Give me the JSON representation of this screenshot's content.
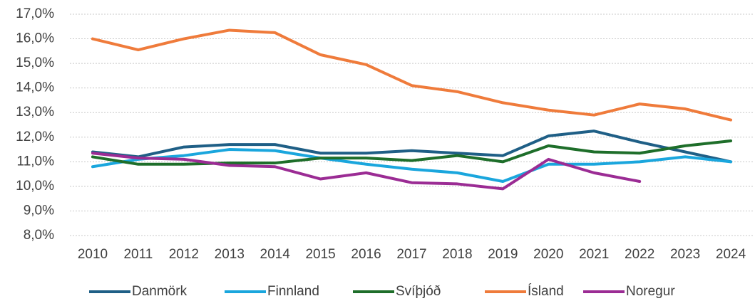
{
  "chart_data": {
    "type": "line",
    "categories": [
      "2010",
      "2011",
      "2012",
      "2013",
      "2014",
      "2015",
      "2016",
      "2017",
      "2018",
      "2019",
      "2020",
      "2021",
      "2022",
      "2023",
      "2024"
    ],
    "ylim": [
      8,
      17
    ],
    "yticks": [
      {
        "value": 8,
        "label": "8,0%"
      },
      {
        "value": 9,
        "label": "9,0%"
      },
      {
        "value": 10,
        "label": "10,0%"
      },
      {
        "value": 11,
        "label": "11,0%"
      },
      {
        "value": 12,
        "label": "12,0%"
      },
      {
        "value": 13,
        "label": "13,0%"
      },
      {
        "value": 14,
        "label": "14,0%"
      },
      {
        "value": 15,
        "label": "15,0%"
      },
      {
        "value": 16,
        "label": "16,0%"
      },
      {
        "value": 17,
        "label": "17,0%"
      }
    ],
    "grid": true,
    "legend": "bottom",
    "series": [
      {
        "name": "Danmörk",
        "color": "#1f5f86",
        "values": [
          11.4,
          11.2,
          11.6,
          11.7,
          11.7,
          11.35,
          11.35,
          11.45,
          11.35,
          11.25,
          12.05,
          12.25,
          11.8,
          11.4,
          11.0
        ]
      },
      {
        "name": "Finnland",
        "color": "#1aa6dd",
        "values": [
          10.8,
          11.1,
          11.25,
          11.5,
          11.45,
          11.15,
          10.9,
          10.7,
          10.55,
          10.2,
          10.9,
          10.9,
          11.0,
          11.2,
          11.0
        ]
      },
      {
        "name": "Svíþjóð",
        "color": "#1e6e2a",
        "values": [
          11.2,
          10.9,
          10.9,
          10.95,
          10.95,
          11.15,
          11.15,
          11.05,
          11.25,
          11.0,
          11.65,
          11.4,
          11.35,
          11.65,
          11.85
        ]
      },
      {
        "name": "Ísland",
        "color": "#ef7b3b",
        "values": [
          16.0,
          15.55,
          16.0,
          16.35,
          16.25,
          15.35,
          14.95,
          14.1,
          13.85,
          13.4,
          13.1,
          12.9,
          13.35,
          13.15,
          12.7
        ]
      },
      {
        "name": "Noregur",
        "color": "#9b2c94",
        "values": [
          11.35,
          11.15,
          11.1,
          10.85,
          10.8,
          10.3,
          10.55,
          10.15,
          10.1,
          9.9,
          11.1,
          10.55,
          10.2,
          null,
          null
        ]
      }
    ]
  }
}
